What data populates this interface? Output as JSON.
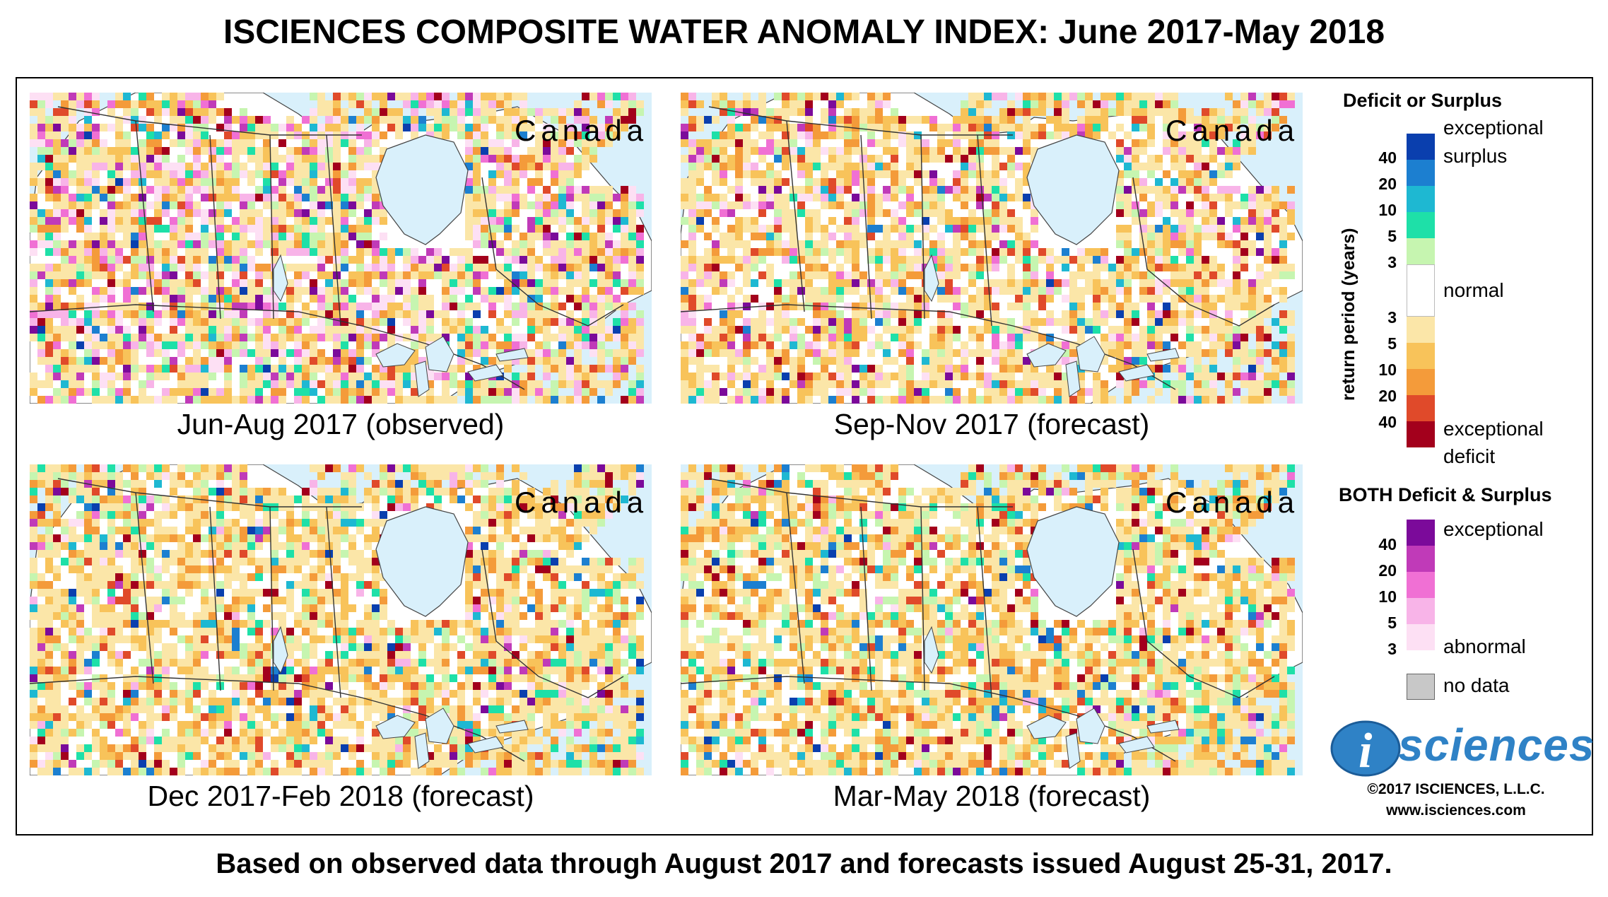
{
  "title": "ISCIENCES COMPOSITE WATER ANOMALY INDEX: June 2017-May 2018",
  "footer": "Based on observed data through August 2017 and forecasts issued August 25-31, 2017.",
  "panels": [
    {
      "caption": "Jun-Aug 2017 (observed)",
      "region": "Canada",
      "mix": {
        "deficit": 0.45,
        "surplus": 0.15,
        "both": 0.22
      }
    },
    {
      "caption": "Sep-Nov 2017 (forecast)",
      "region": "Canada",
      "mix": {
        "deficit": 0.55,
        "surplus": 0.1,
        "both": 0.12
      }
    },
    {
      "caption": "Dec 2017-Feb 2018 (forecast)",
      "region": "Canada",
      "mix": {
        "deficit": 0.62,
        "surplus": 0.12,
        "both": 0.05
      }
    },
    {
      "caption": "Mar-May 2018 (forecast)",
      "region": "Canada",
      "mix": {
        "deficit": 0.6,
        "surplus": 0.16,
        "both": 0.03
      }
    }
  ],
  "legend": {
    "deficit_surplus_heading": "Deficit or Surplus",
    "axis_label": "return period (years)",
    "surplus_label_top": "exceptional",
    "surplus_label_bottom": "surplus",
    "normal_label": "normal",
    "deficit_label_top": "exceptional",
    "deficit_label_bottom": "deficit",
    "surplus_ticks": [
      "40",
      "20",
      "10",
      "5",
      "3"
    ],
    "deficit_ticks": [
      "3",
      "5",
      "10",
      "20",
      "40"
    ],
    "surplus_colors": [
      "#0a3fae",
      "#1c7fd0",
      "#1eb8d2",
      "#1ee0a8",
      "#c6f5b0"
    ],
    "normal_color": "#ffffff",
    "deficit_colors": [
      "#fbe6a8",
      "#f8c35a",
      "#f49b3a",
      "#e04a2a",
      "#a3001c"
    ],
    "both_heading": "BOTH Deficit & Surplus",
    "both_label_top": "exceptional",
    "both_label_bottom": "abnormal",
    "both_ticks": [
      "40",
      "20",
      "10",
      "5",
      "3"
    ],
    "both_colors": [
      "#7b0a9a",
      "#c03ab8",
      "#f070d4",
      "#f8b4e8",
      "#fde0f4"
    ],
    "no_data_label": "no data",
    "no_data_color": "#c8c8c8"
  },
  "logo": {
    "letter": "i",
    "text": "sciences"
  },
  "copyright": "©2017 ISCIENCES, L.L.C.",
  "website": "www.isciences.com",
  "water_color": "#d9f0fb"
}
